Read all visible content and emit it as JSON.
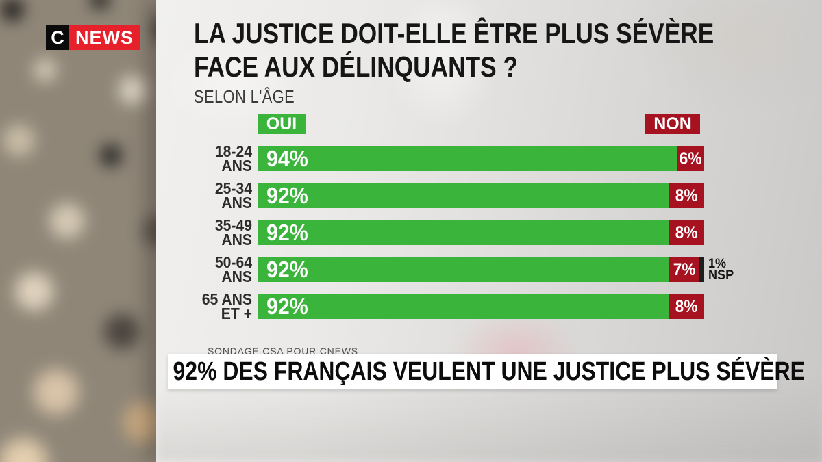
{
  "channel": {
    "logo_c": "C",
    "logo_news": "NEWS"
  },
  "question": {
    "line1": "LA JUSTICE DOIT-ELLE ÊTRE PLUS SÉVÈRE",
    "line2": "FACE AUX DÉLINQUANTS ?",
    "scope": "SELON L'ÂGE"
  },
  "chart_data": {
    "type": "bar",
    "orientation": "horizontal",
    "unit": "%",
    "xlim": [
      0,
      100
    ],
    "legend_position": "top",
    "value_labels": true,
    "categories": [
      "18-24 ANS",
      "25-34 ANS",
      "35-49 ANS",
      "50-64 ANS",
      "65 ANS ET +"
    ],
    "category_lines": [
      [
        "18-24",
        "ANS"
      ],
      [
        "25-34",
        "ANS"
      ],
      [
        "35-49",
        "ANS"
      ],
      [
        "50-64",
        "ANS"
      ],
      [
        "65 ANS",
        "ET +"
      ]
    ],
    "series": [
      {
        "name": "OUI",
        "color": "#3ab43a",
        "values": [
          94,
          92,
          92,
          92,
          92
        ]
      },
      {
        "name": "NON",
        "color": "#a6121f",
        "values": [
          6,
          8,
          8,
          7,
          8
        ]
      },
      {
        "name": "NSP",
        "color": "#1d1d1d",
        "values": [
          0,
          0,
          0,
          1,
          0
        ]
      }
    ],
    "annotations": [
      {
        "category": "50-64 ANS",
        "text": "1% NSP"
      }
    ]
  },
  "source": "SONDAGE CSA POUR CNEWS",
  "banner": {
    "text": "92% DES FRANÇAIS VEULENT UNE JUSTICE PLUS SÉVÈRE"
  },
  "colors": {
    "green": "#3ab43a",
    "red": "#a6121f",
    "nsp_black": "#1d1d1d",
    "logo_black": "#0a0a0a",
    "logo_red": "#e6212b",
    "banner_bg": "#ffffff"
  }
}
